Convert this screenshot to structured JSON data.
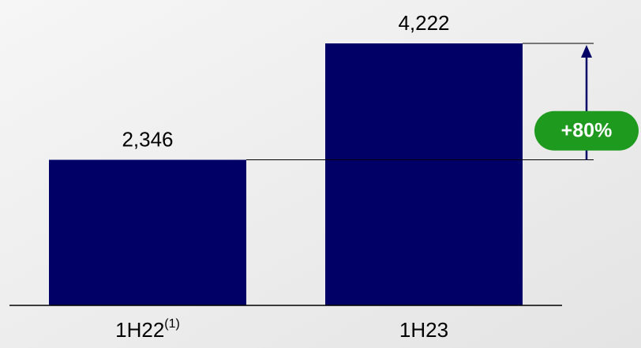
{
  "chart_data": {
    "type": "bar",
    "categories": [
      "1H22",
      "1H23"
    ],
    "category_notes": [
      "(1)",
      null
    ],
    "values": [
      2346,
      4222
    ],
    "value_labels": [
      "2,346",
      "4,222"
    ],
    "color": "#000066",
    "annotation": "+80%",
    "annotation_color": "#1e9a1e"
  }
}
